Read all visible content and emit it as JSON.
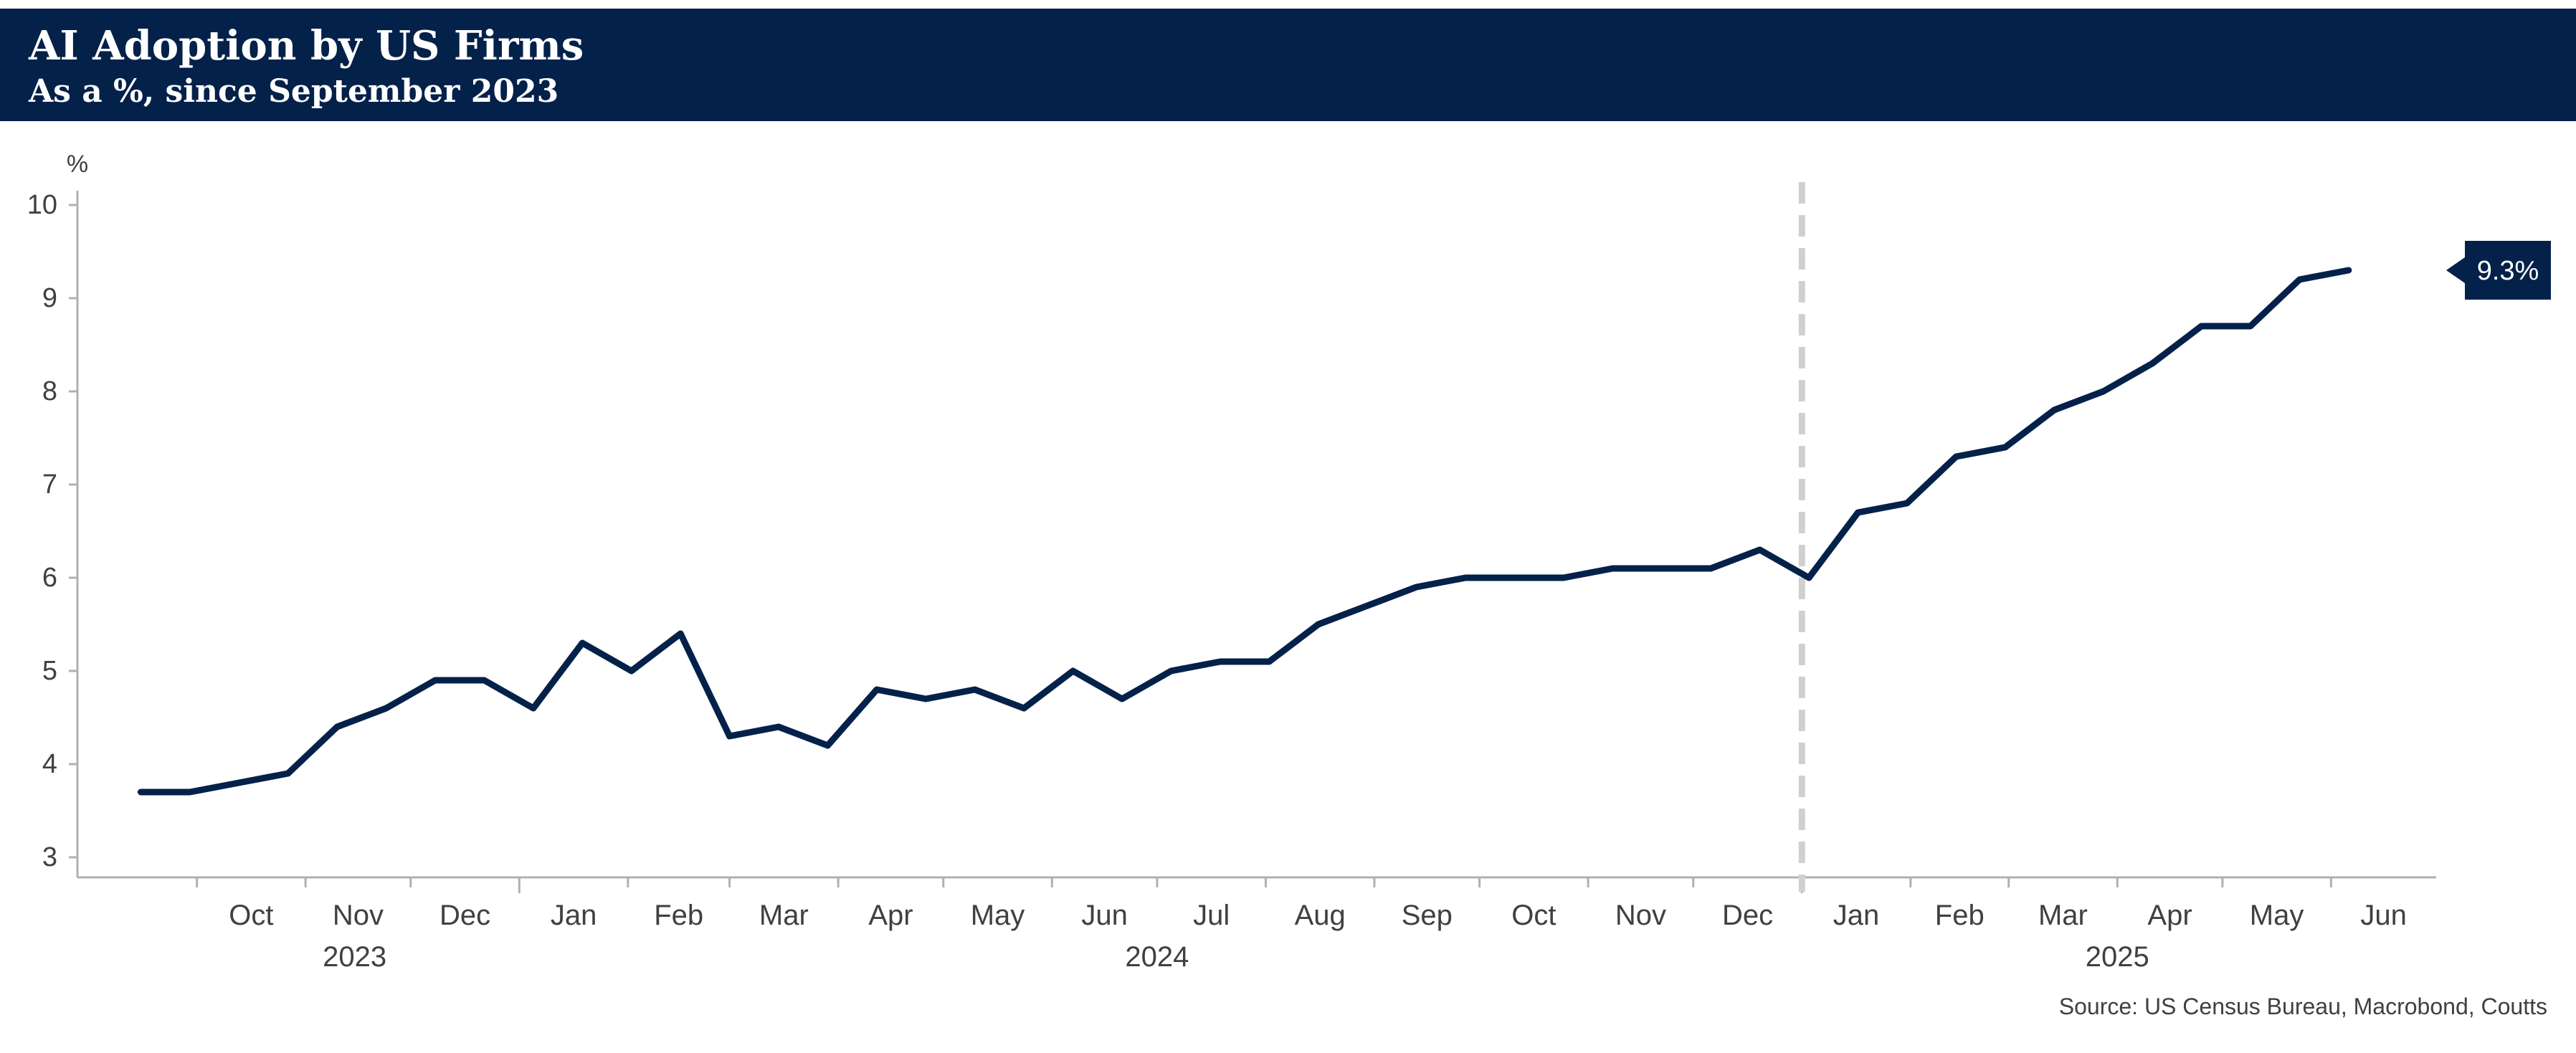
{
  "header": {
    "title": "AI Adoption by US Firms",
    "subtitle": "As a %, since September 2023"
  },
  "source": "Source: US Census Bureau, Macrobond, Coutts",
  "colors": {
    "header_bg": "#04214a",
    "line": "#04214a",
    "divider": "#d0d0d0",
    "axis": "#b0b0b0",
    "text": "#404040"
  },
  "chart_data": {
    "type": "line",
    "title": "AI Adoption by US Firms",
    "subtitle": "As a %, since September 2023",
    "ylabel": "%",
    "ylim": [
      3,
      10
    ],
    "yticks": [
      "3",
      "4",
      "5",
      "6",
      "7",
      "8",
      "9",
      "10"
    ],
    "grid": false,
    "x_month_labels": [
      "Oct",
      "Nov",
      "Dec",
      "Jan",
      "Feb",
      "Mar",
      "Apr",
      "May",
      "Jun",
      "Jul",
      "Aug",
      "Sep",
      "Oct",
      "Nov",
      "Dec",
      "Jan",
      "Feb",
      "Mar",
      "Apr",
      "May",
      "Jun"
    ],
    "x_year_labels": [
      "2023",
      "2024",
      "2025"
    ],
    "vertical_divider_at": "2025-01",
    "series": [
      {
        "x": [
          "2023-09-15",
          "2023-09-29",
          "2023-10-13",
          "2023-10-27",
          "2023-11-10",
          "2023-11-24",
          "2023-12-08",
          "2023-12-22",
          "2024-01-05",
          "2024-01-19",
          "2024-02-02",
          "2024-02-16",
          "2024-03-01",
          "2024-03-15",
          "2024-03-29",
          "2024-04-12",
          "2024-04-26",
          "2024-05-10",
          "2024-05-24",
          "2024-06-07",
          "2024-06-21",
          "2024-07-05",
          "2024-07-19",
          "2024-08-02",
          "2024-08-16",
          "2024-08-30",
          "2024-09-13",
          "2024-09-27",
          "2024-10-11",
          "2024-10-25",
          "2024-11-08",
          "2024-11-22",
          "2024-12-06",
          "2024-12-20",
          "2025-01-03",
          "2025-01-17",
          "2025-01-31",
          "2025-02-14",
          "2025-02-28",
          "2025-03-14",
          "2025-03-28",
          "2025-04-11",
          "2025-04-25",
          "2025-05-09",
          "2025-05-23",
          "2025-06-06",
          "2025-06-20"
        ],
        "y": [
          3.7,
          3.7,
          3.8,
          3.9,
          4.4,
          4.6,
          4.9,
          4.9,
          4.6,
          5.3,
          5.0,
          5.4,
          4.3,
          4.4,
          4.2,
          4.8,
          4.7,
          4.8,
          4.6,
          5.0,
          4.7,
          5.0,
          5.1,
          5.1,
          5.5,
          5.7,
          5.9,
          6.0,
          6.0,
          6.0,
          6.1,
          6.1,
          6.1,
          6.3,
          6.0,
          6.7,
          6.8,
          7.3,
          7.4,
          7.8,
          8.0,
          8.3,
          8.7,
          8.7,
          9.2,
          9.3,
          null
        ]
      }
    ],
    "end_label": "9.3%"
  }
}
